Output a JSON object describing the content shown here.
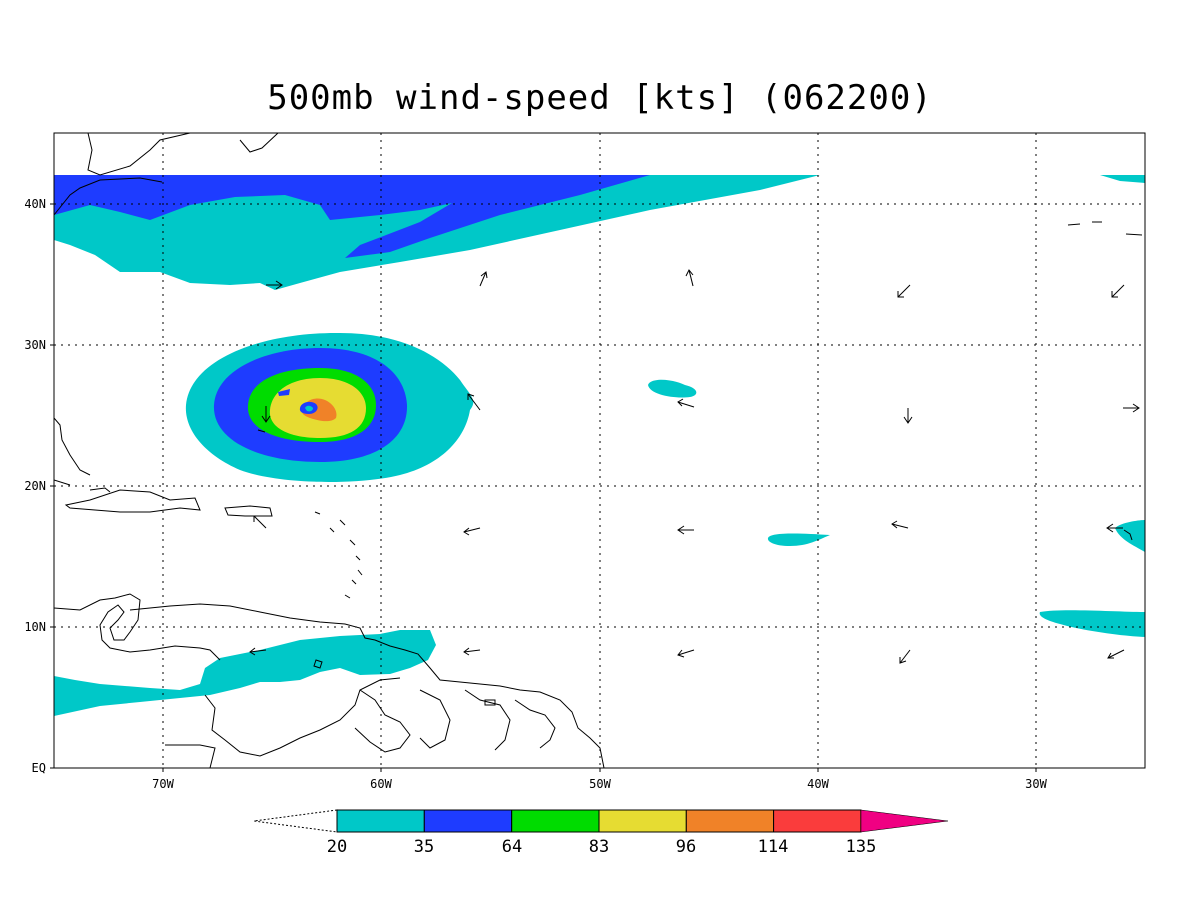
{
  "title": "500mb wind-speed [kts] (062200)",
  "map": {
    "lon_range": [
      -75,
      -25
    ],
    "lat_range": [
      0,
      45
    ],
    "lat_labels": [
      {
        "value": 40,
        "text": "40N"
      },
      {
        "value": 30,
        "text": "30N"
      },
      {
        "value": 20,
        "text": "20N"
      },
      {
        "value": 10,
        "text": "10N"
      },
      {
        "value": 0,
        "text": "EQ"
      }
    ],
    "lon_labels": [
      {
        "value": -70,
        "text": "70W"
      },
      {
        "value": -60,
        "text": "60W"
      },
      {
        "value": -50,
        "text": "50W"
      },
      {
        "value": -40,
        "text": "40W"
      },
      {
        "value": -30,
        "text": "30W"
      }
    ]
  },
  "colorbar": {
    "levels": [
      "20",
      "35",
      "64",
      "83",
      "96",
      "114",
      "135"
    ],
    "colors": [
      "#00c8c8",
      "#1e3cff",
      "#00dc00",
      "#e6dc32",
      "#f08228",
      "#fa3c3c",
      "#f00082"
    ],
    "under_color": "#ffffff",
    "over_color": "#f00082"
  },
  "chart_data": {
    "type": "heatmap",
    "variable": "500mb wind-speed",
    "units": "kts",
    "valid": "062200",
    "features": [
      {
        "name": "cyclone core",
        "center_lon": -63.5,
        "center_lat": 25.5,
        "max_level": "114"
      }
    ]
  }
}
